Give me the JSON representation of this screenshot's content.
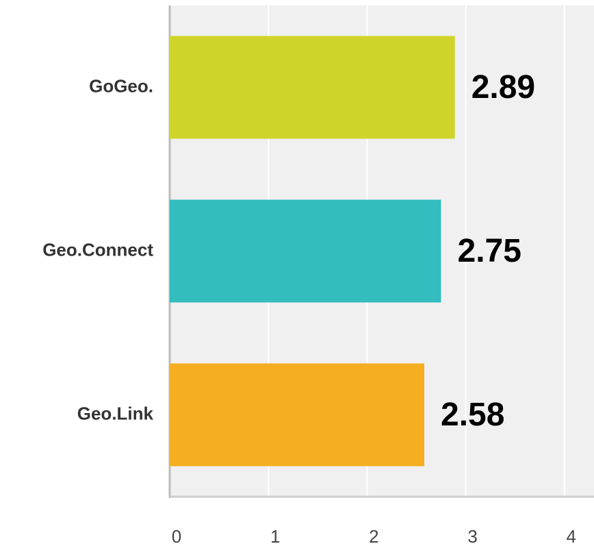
{
  "chart_data": {
    "type": "bar",
    "orientation": "horizontal",
    "categories": [
      "GoGeo.",
      "Geo.Connect",
      "Geo.Link"
    ],
    "values": [
      2.89,
      2.75,
      2.58
    ],
    "colors": [
      "#cfd42a",
      "#33bdbf",
      "#f5ae1f"
    ],
    "xlim": [
      0,
      4.3
    ],
    "xticks": [
      0,
      1,
      2,
      3,
      4
    ],
    "grid": true
  }
}
